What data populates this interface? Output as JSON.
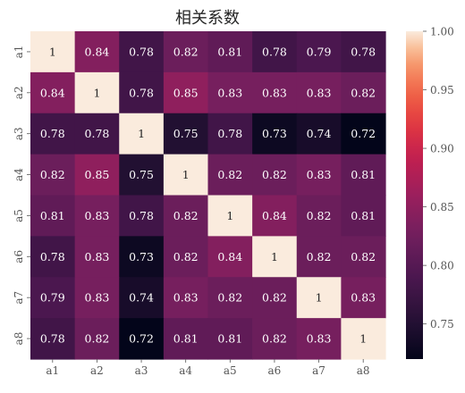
{
  "chart_data": {
    "type": "heatmap",
    "title": "相关系数",
    "x_labels": [
      "a1",
      "a2",
      "a3",
      "a4",
      "a5",
      "a6",
      "a7",
      "a8"
    ],
    "y_labels": [
      "a1",
      "a2",
      "a3",
      "a4",
      "a5",
      "a6",
      "a7",
      "a8"
    ],
    "values": [
      [
        1,
        0.84,
        0.78,
        0.82,
        0.81,
        0.78,
        0.79,
        0.78
      ],
      [
        0.84,
        1,
        0.78,
        0.85,
        0.83,
        0.83,
        0.83,
        0.82
      ],
      [
        0.78,
        0.78,
        1,
        0.75,
        0.78,
        0.73,
        0.74,
        0.72
      ],
      [
        0.82,
        0.85,
        0.75,
        1,
        0.82,
        0.82,
        0.83,
        0.81
      ],
      [
        0.81,
        0.83,
        0.78,
        0.82,
        1,
        0.84,
        0.82,
        0.81
      ],
      [
        0.78,
        0.83,
        0.73,
        0.82,
        0.84,
        1,
        0.82,
        0.82
      ],
      [
        0.79,
        0.83,
        0.74,
        0.83,
        0.82,
        0.82,
        1,
        0.83
      ],
      [
        0.78,
        0.82,
        0.72,
        0.81,
        0.81,
        0.82,
        0.83,
        1
      ]
    ],
    "color_range": [
      0.72,
      1.0
    ],
    "colorbar_ticks": [
      "1.00",
      "0.95",
      "0.90",
      "0.85",
      "0.80",
      "0.75"
    ],
    "colorbar_tick_values": [
      1.0,
      0.95,
      0.9,
      0.85,
      0.8,
      0.75
    ],
    "colormap": "rocket",
    "grid": false,
    "legend": "colorbar-right"
  }
}
